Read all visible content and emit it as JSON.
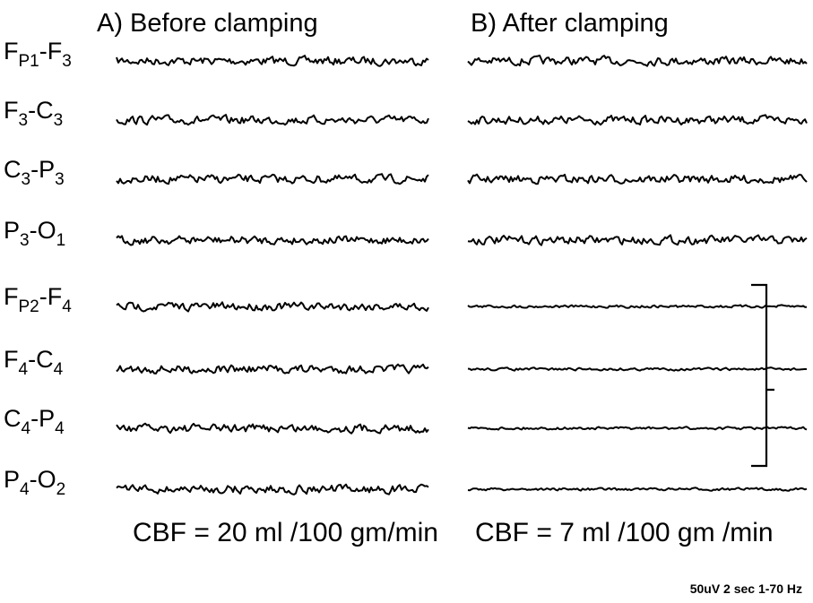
{
  "panels": [
    {
      "title": "A)  Before clamping",
      "cbf": "CBF = 20 ml /100 gm/min"
    },
    {
      "title": "B)    After clamping",
      "cbf": "CBF =  7 ml /100 gm /min"
    }
  ],
  "channels": [
    {
      "label": [
        "F",
        "P1",
        "-F",
        "3"
      ]
    },
    {
      "label": [
        "F",
        "3",
        "-C",
        "3"
      ]
    },
    {
      "label": [
        "C",
        "3",
        "-P",
        "3"
      ]
    },
    {
      "label": [
        "P",
        "3",
        "-O",
        "1"
      ]
    },
    {
      "label": [
        "F",
        "P2",
        "-F",
        "4"
      ]
    },
    {
      "label": [
        "F",
        "4",
        "-C",
        "4"
      ]
    },
    {
      "label": [
        "C",
        "4",
        "-P",
        "4"
      ]
    },
    {
      "label": [
        "P",
        "4",
        "-O",
        "2"
      ]
    }
  ],
  "footer": "50uV   2 sec    1-70 Hz"
}
